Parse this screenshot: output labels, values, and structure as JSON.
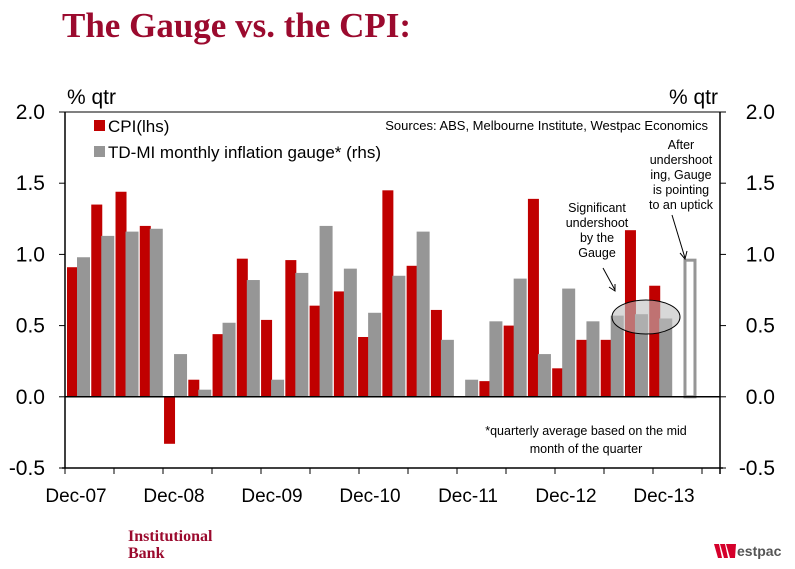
{
  "title": "The Gauge vs. the CPI:",
  "footer": {
    "brand_line1": "Institutional",
    "brand_line2": "Bank",
    "logo_text": "estpac",
    "logo_icon": "westpac-w-logo-icon"
  },
  "colors": {
    "title": "#9b0a2e",
    "cpi": "#c00000",
    "gauge": "#969696",
    "ellipse_fill": "rgba(190,190,190,0.6)"
  },
  "chart_data": {
    "type": "bar",
    "title": "The Gauge vs. the CPI:",
    "ylabel_left": "% qtr",
    "ylabel_right": "% qtr",
    "ylim": [
      -0.5,
      2.0
    ],
    "yticks": [
      "2.0",
      "1.5",
      "1.0",
      "0.5",
      "0.0",
      "-0.5"
    ],
    "ytick_values": [
      2.0,
      1.5,
      1.0,
      0.5,
      0.0,
      -0.5
    ],
    "xtick_labels": [
      "Dec-07",
      "Dec-08",
      "Dec-09",
      "Dec-10",
      "Dec-11",
      "Dec-12",
      "Dec-13"
    ],
    "categories": [
      "Dec-07",
      "Mar-08",
      "Jun-08",
      "Sep-08",
      "Dec-08",
      "Mar-09",
      "Jun-09",
      "Sep-09",
      "Dec-09",
      "Mar-10",
      "Jun-10",
      "Sep-10",
      "Dec-10",
      "Mar-11",
      "Jun-11",
      "Sep-11",
      "Dec-11",
      "Mar-12",
      "Jun-12",
      "Sep-12",
      "Dec-12",
      "Mar-13",
      "Jun-13",
      "Sep-13",
      "Dec-13"
    ],
    "series": [
      {
        "name": "CPI(lhs)",
        "values": [
          0.91,
          1.35,
          1.44,
          1.2,
          -0.33,
          0.12,
          0.44,
          0.97,
          0.54,
          0.96,
          0.64,
          0.74,
          0.42,
          1.45,
          0.92,
          0.61,
          null,
          0.11,
          0.5,
          1.39,
          0.2,
          0.4,
          0.4,
          1.17,
          0.78
        ]
      },
      {
        "name": "TD-MI monthly inflation gauge* (rhs)",
        "values": [
          0.98,
          1.13,
          1.16,
          1.18,
          0.3,
          0.05,
          0.52,
          0.82,
          0.12,
          0.87,
          1.2,
          0.9,
          0.59,
          0.85,
          1.16,
          0.4,
          0.12,
          0.53,
          0.83,
          0.3,
          0.76,
          0.53,
          0.57,
          0.58,
          0.55
        ],
        "outlined_extra": {
          "category_index": 25,
          "value": 0.97
        }
      }
    ],
    "legend": [
      "CPI(lhs)",
      "TD-MI monthly inflation gauge* (rhs)"
    ],
    "legend_position": "top-left",
    "source": "Sources: ABS, Melbourne Institute, Westpac Economics",
    "footnote_line1": "*quarterly average based on the mid",
    "footnote_line2": "month of the quarter",
    "annotations": [
      {
        "lines": [
          "Significant",
          "undershoot",
          "by the",
          "Gauge"
        ]
      },
      {
        "lines": [
          "After",
          "undershoot",
          "ing, Gauge",
          "is pointing",
          "to an uptick"
        ]
      }
    ],
    "grid": false
  }
}
